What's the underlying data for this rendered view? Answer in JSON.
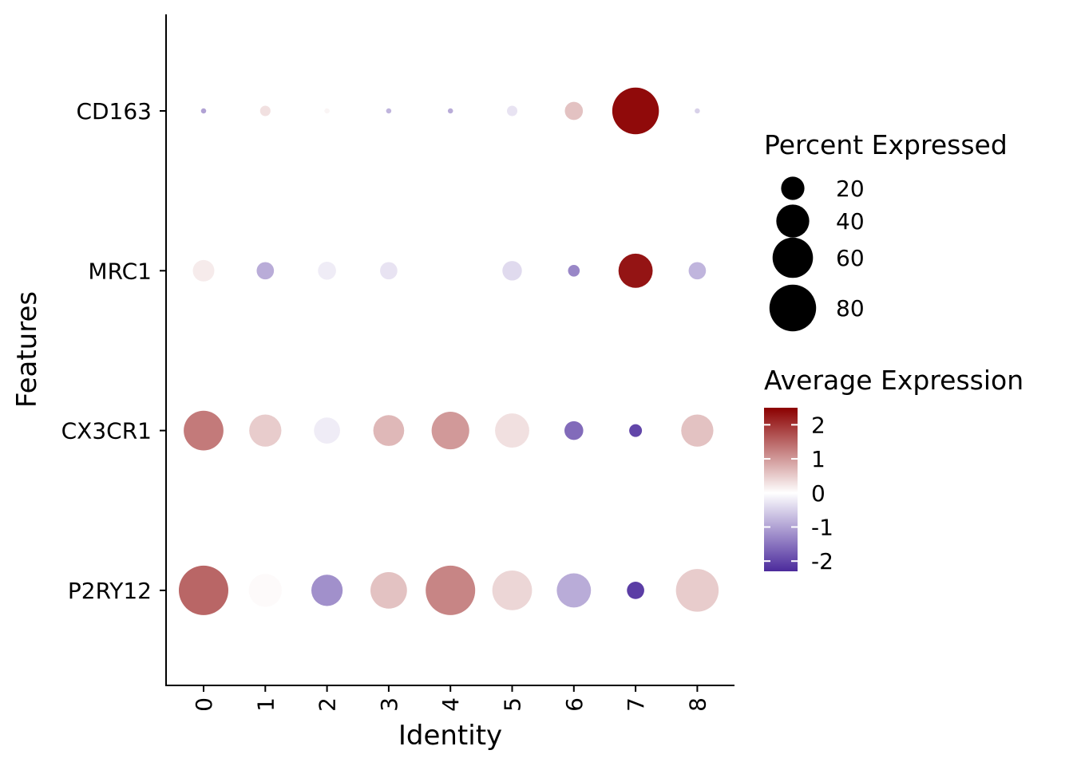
{
  "chart_data": {
    "type": "dotplot",
    "xlabel": "Identity",
    "ylabel": "Features",
    "categories": [
      "0",
      "1",
      "2",
      "3",
      "4",
      "5",
      "6",
      "7",
      "8"
    ],
    "features": [
      "CD163",
      "MRC1",
      "CX3CR1",
      "P2RY12"
    ],
    "points": [
      {
        "feature": "CD163",
        "identity": "0",
        "pct": 1,
        "avg": -1.0
      },
      {
        "feature": "CD163",
        "identity": "1",
        "pct": 4,
        "avg": 0.3
      },
      {
        "feature": "CD163",
        "identity": "2",
        "pct": 1,
        "avg": 0.1
      },
      {
        "feature": "CD163",
        "identity": "3",
        "pct": 1,
        "avg": -0.8
      },
      {
        "feature": "CD163",
        "identity": "4",
        "pct": 1,
        "avg": -0.9
      },
      {
        "feature": "CD163",
        "identity": "5",
        "pct": 4,
        "avg": -0.3
      },
      {
        "feature": "CD163",
        "identity": "6",
        "pct": 12,
        "avg": 0.6
      },
      {
        "feature": "CD163",
        "identity": "7",
        "pct": 80,
        "avg": 2.4
      },
      {
        "feature": "CD163",
        "identity": "8",
        "pct": 1,
        "avg": -0.5
      },
      {
        "feature": "MRC1",
        "identity": "0",
        "pct": 17,
        "avg": 0.2
      },
      {
        "feature": "MRC1",
        "identity": "1",
        "pct": 11,
        "avg": -0.9
      },
      {
        "feature": "MRC1",
        "identity": "2",
        "pct": 12,
        "avg": -0.2
      },
      {
        "feature": "MRC1",
        "identity": "3",
        "pct": 11,
        "avg": -0.3
      },
      {
        "feature": "MRC1",
        "identity": "5",
        "pct": 14,
        "avg": -0.4
      },
      {
        "feature": "MRC1",
        "identity": "6",
        "pct": 5,
        "avg": -1.3
      },
      {
        "feature": "MRC1",
        "identity": "7",
        "pct": 43,
        "avg": 2.3
      },
      {
        "feature": "MRC1",
        "identity": "8",
        "pct": 11,
        "avg": -0.8
      },
      {
        "feature": "CX3CR1",
        "identity": "0",
        "pct": 58,
        "avg": 1.3
      },
      {
        "feature": "CX3CR1",
        "identity": "1",
        "pct": 38,
        "avg": 0.5
      },
      {
        "feature": "CX3CR1",
        "identity": "2",
        "pct": 25,
        "avg": -0.2
      },
      {
        "feature": "CX3CR1",
        "identity": "3",
        "pct": 35,
        "avg": 0.7
      },
      {
        "feature": "CX3CR1",
        "identity": "4",
        "pct": 52,
        "avg": 1.0
      },
      {
        "feature": "CX3CR1",
        "identity": "5",
        "pct": 43,
        "avg": 0.3
      },
      {
        "feature": "CX3CR1",
        "identity": "6",
        "pct": 13,
        "avg": -1.6
      },
      {
        "feature": "CX3CR1",
        "identity": "7",
        "pct": 6,
        "avg": -2.0
      },
      {
        "feature": "CX3CR1",
        "identity": "8",
        "pct": 38,
        "avg": 0.6
      },
      {
        "feature": "P2RY12",
        "identity": "0",
        "pct": 90,
        "avg": 1.5
      },
      {
        "feature": "P2RY12",
        "identity": "1",
        "pct": 40,
        "avg": 0.05
      },
      {
        "feature": "P2RY12",
        "identity": "2",
        "pct": 36,
        "avg": -1.2
      },
      {
        "feature": "P2RY12",
        "identity": "3",
        "pct": 49,
        "avg": 0.6
      },
      {
        "feature": "P2RY12",
        "identity": "4",
        "pct": 90,
        "avg": 1.2
      },
      {
        "feature": "P2RY12",
        "identity": "5",
        "pct": 58,
        "avg": 0.4
      },
      {
        "feature": "P2RY12",
        "identity": "6",
        "pct": 43,
        "avg": -0.9
      },
      {
        "feature": "P2RY12",
        "identity": "7",
        "pct": 11,
        "avg": -2.1
      },
      {
        "feature": "P2RY12",
        "identity": "8",
        "pct": 67,
        "avg": 0.5
      }
    ],
    "size_legend": {
      "title": "Percent Expressed",
      "values": [
        20,
        40,
        60,
        80
      ],
      "labels": [
        "20",
        "40",
        "60",
        "80"
      ]
    },
    "color_legend": {
      "title": "Average Expression",
      "range": [
        -2.3,
        2.5
      ],
      "ticks": [
        2,
        1,
        0,
        -1,
        -2
      ],
      "tick_labels": [
        "2",
        "1",
        "0",
        "-1",
        "-2"
      ],
      "colors": {
        "low": "#4b2a9c",
        "mid": "#ffffff",
        "high": "#8b0000"
      }
    },
    "grid": false
  }
}
